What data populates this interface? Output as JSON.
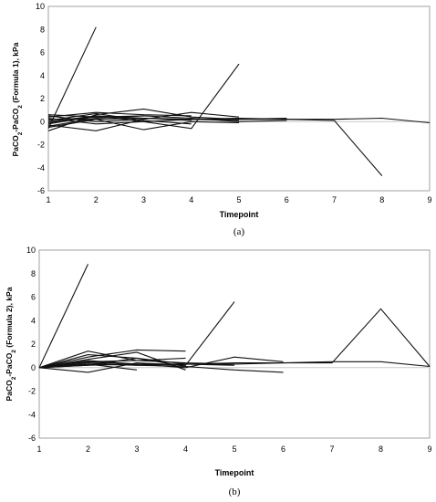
{
  "chart_data": [
    {
      "type": "line",
      "panel_label": "(a)",
      "xlabel": "Timepoint",
      "ylabel_parts": [
        "PaCO",
        "2",
        "-PaCO",
        "2",
        " (Formula 1), kPa"
      ],
      "xlim": [
        1,
        9
      ],
      "ylim": [
        -6,
        10
      ],
      "xticks": [
        "1",
        "2",
        "3",
        "4",
        "5",
        "6",
        "7",
        "8",
        "9"
      ],
      "yticks": [
        "10",
        "8",
        "6",
        "4",
        "2",
        "0",
        "-2",
        "-4",
        "-6"
      ],
      "series": [
        {
          "x": [
            1,
            2
          ],
          "y": [
            -0.6,
            8.2
          ]
        },
        {
          "x": [
            1,
            2,
            3,
            4,
            5
          ],
          "y": [
            -0.2,
            0.5,
            0.0,
            -0.6,
            5.0
          ]
        },
        {
          "x": [
            1,
            2,
            3,
            4,
            5,
            6,
            7,
            8
          ],
          "y": [
            0.6,
            0.4,
            0.3,
            0.2,
            0.3,
            0.2,
            0.1,
            -4.7
          ]
        },
        {
          "x": [
            1,
            2,
            3,
            4,
            5,
            6,
            7,
            8,
            9
          ],
          "y": [
            0.2,
            0.2,
            0.3,
            0.2,
            0.2,
            0.2,
            0.2,
            0.3,
            -0.1
          ]
        },
        {
          "x": [
            1,
            2,
            3,
            4,
            5,
            6
          ],
          "y": [
            -0.8,
            0.6,
            1.1,
            0.4,
            0.2,
            0.3
          ]
        },
        {
          "x": [
            1,
            2,
            3,
            4,
            5
          ],
          "y": [
            -0.3,
            -0.8,
            0.2,
            0.8,
            0.4
          ]
        },
        {
          "x": [
            1,
            2,
            3,
            4
          ],
          "y": [
            0.4,
            0.8,
            0.6,
            0.5
          ]
        },
        {
          "x": [
            1,
            2,
            3,
            4,
            5
          ],
          "y": [
            -0.5,
            0.2,
            -0.7,
            0.0,
            -0.1
          ]
        },
        {
          "x": [
            1,
            2,
            3,
            4
          ],
          "y": [
            0.0,
            0.5,
            0.3,
            0.1
          ]
        },
        {
          "x": [
            1,
            2,
            3,
            4,
            5
          ],
          "y": [
            0.3,
            -0.2,
            0.0,
            0.2,
            0.1
          ]
        },
        {
          "x": [
            1,
            2,
            3
          ],
          "y": [
            -0.4,
            0.3,
            0.5
          ]
        },
        {
          "x": [
            1,
            2,
            3,
            4
          ],
          "y": [
            0.1,
            0.7,
            0.1,
            -0.2
          ]
        },
        {
          "x": [
            1,
            2,
            3,
            4,
            5,
            6
          ],
          "y": [
            -0.1,
            0.4,
            0.5,
            0.3,
            0.0,
            0.1
          ]
        },
        {
          "x": [
            1,
            2,
            3
          ],
          "y": [
            0.5,
            0.0,
            0.2
          ]
        }
      ]
    },
    {
      "type": "line",
      "panel_label": "(b)",
      "xlabel": "Timepoint",
      "ylabel_parts": [
        "PaCO",
        "2",
        "-PaCO",
        "2",
        " (Formula 2), kPa"
      ],
      "xlim": [
        1,
        9
      ],
      "ylim": [
        -6,
        10
      ],
      "xticks": [
        "1",
        "2",
        "3",
        "4",
        "5",
        "6",
        "7",
        "8",
        "9"
      ],
      "yticks": [
        "10",
        "8",
        "6",
        "4",
        "2",
        "0",
        "-2",
        "-4",
        "-6"
      ],
      "series": [
        {
          "x": [
            1,
            2
          ],
          "y": [
            0,
            8.8
          ]
        },
        {
          "x": [
            1,
            2,
            3,
            4,
            5
          ],
          "y": [
            0,
            0.5,
            0.3,
            0.2,
            5.6
          ]
        },
        {
          "x": [
            1,
            2,
            3,
            4,
            5,
            6,
            7,
            8,
            9
          ],
          "y": [
            0,
            0.3,
            0.2,
            0.3,
            0.3,
            0.4,
            0.4,
            5.0,
            0.1
          ]
        },
        {
          "x": [
            1,
            2,
            3,
            4,
            5,
            6,
            7,
            8,
            9
          ],
          "y": [
            0,
            0.2,
            0.3,
            0.3,
            0.4,
            0.4,
            0.5,
            0.5,
            0.1
          ]
        },
        {
          "x": [
            1,
            2,
            3,
            4
          ],
          "y": [
            0,
            0.9,
            1.5,
            1.4
          ]
        },
        {
          "x": [
            1,
            2,
            3,
            4
          ],
          "y": [
            0,
            1.4,
            0.6,
            0.8
          ]
        },
        {
          "x": [
            1,
            2,
            3,
            4,
            5,
            6
          ],
          "y": [
            0,
            0.6,
            0.3,
            0.0,
            0.9,
            0.5
          ]
        },
        {
          "x": [
            1,
            2,
            3,
            4,
            5,
            6
          ],
          "y": [
            0,
            0.4,
            0.2,
            0.1,
            -0.2,
            -0.4
          ]
        },
        {
          "x": [
            1,
            2,
            3,
            4
          ],
          "y": [
            0,
            -0.4,
            0.4,
            0.2
          ]
        },
        {
          "x": [
            1,
            2,
            3,
            4,
            5
          ],
          "y": [
            0,
            1.1,
            0.8,
            0.3,
            0.2
          ]
        },
        {
          "x": [
            1,
            2,
            3,
            4
          ],
          "y": [
            0,
            0.7,
            1.3,
            -0.2
          ]
        },
        {
          "x": [
            1,
            2,
            3
          ],
          "y": [
            0,
            0.3,
            -0.2
          ]
        },
        {
          "x": [
            1,
            2,
            3,
            4,
            5
          ],
          "y": [
            0,
            0.5,
            0.6,
            0.4,
            0.3
          ]
        },
        {
          "x": [
            1,
            2,
            3,
            4
          ],
          "y": [
            0,
            0.2,
            0.8,
            0.1
          ]
        }
      ]
    }
  ]
}
